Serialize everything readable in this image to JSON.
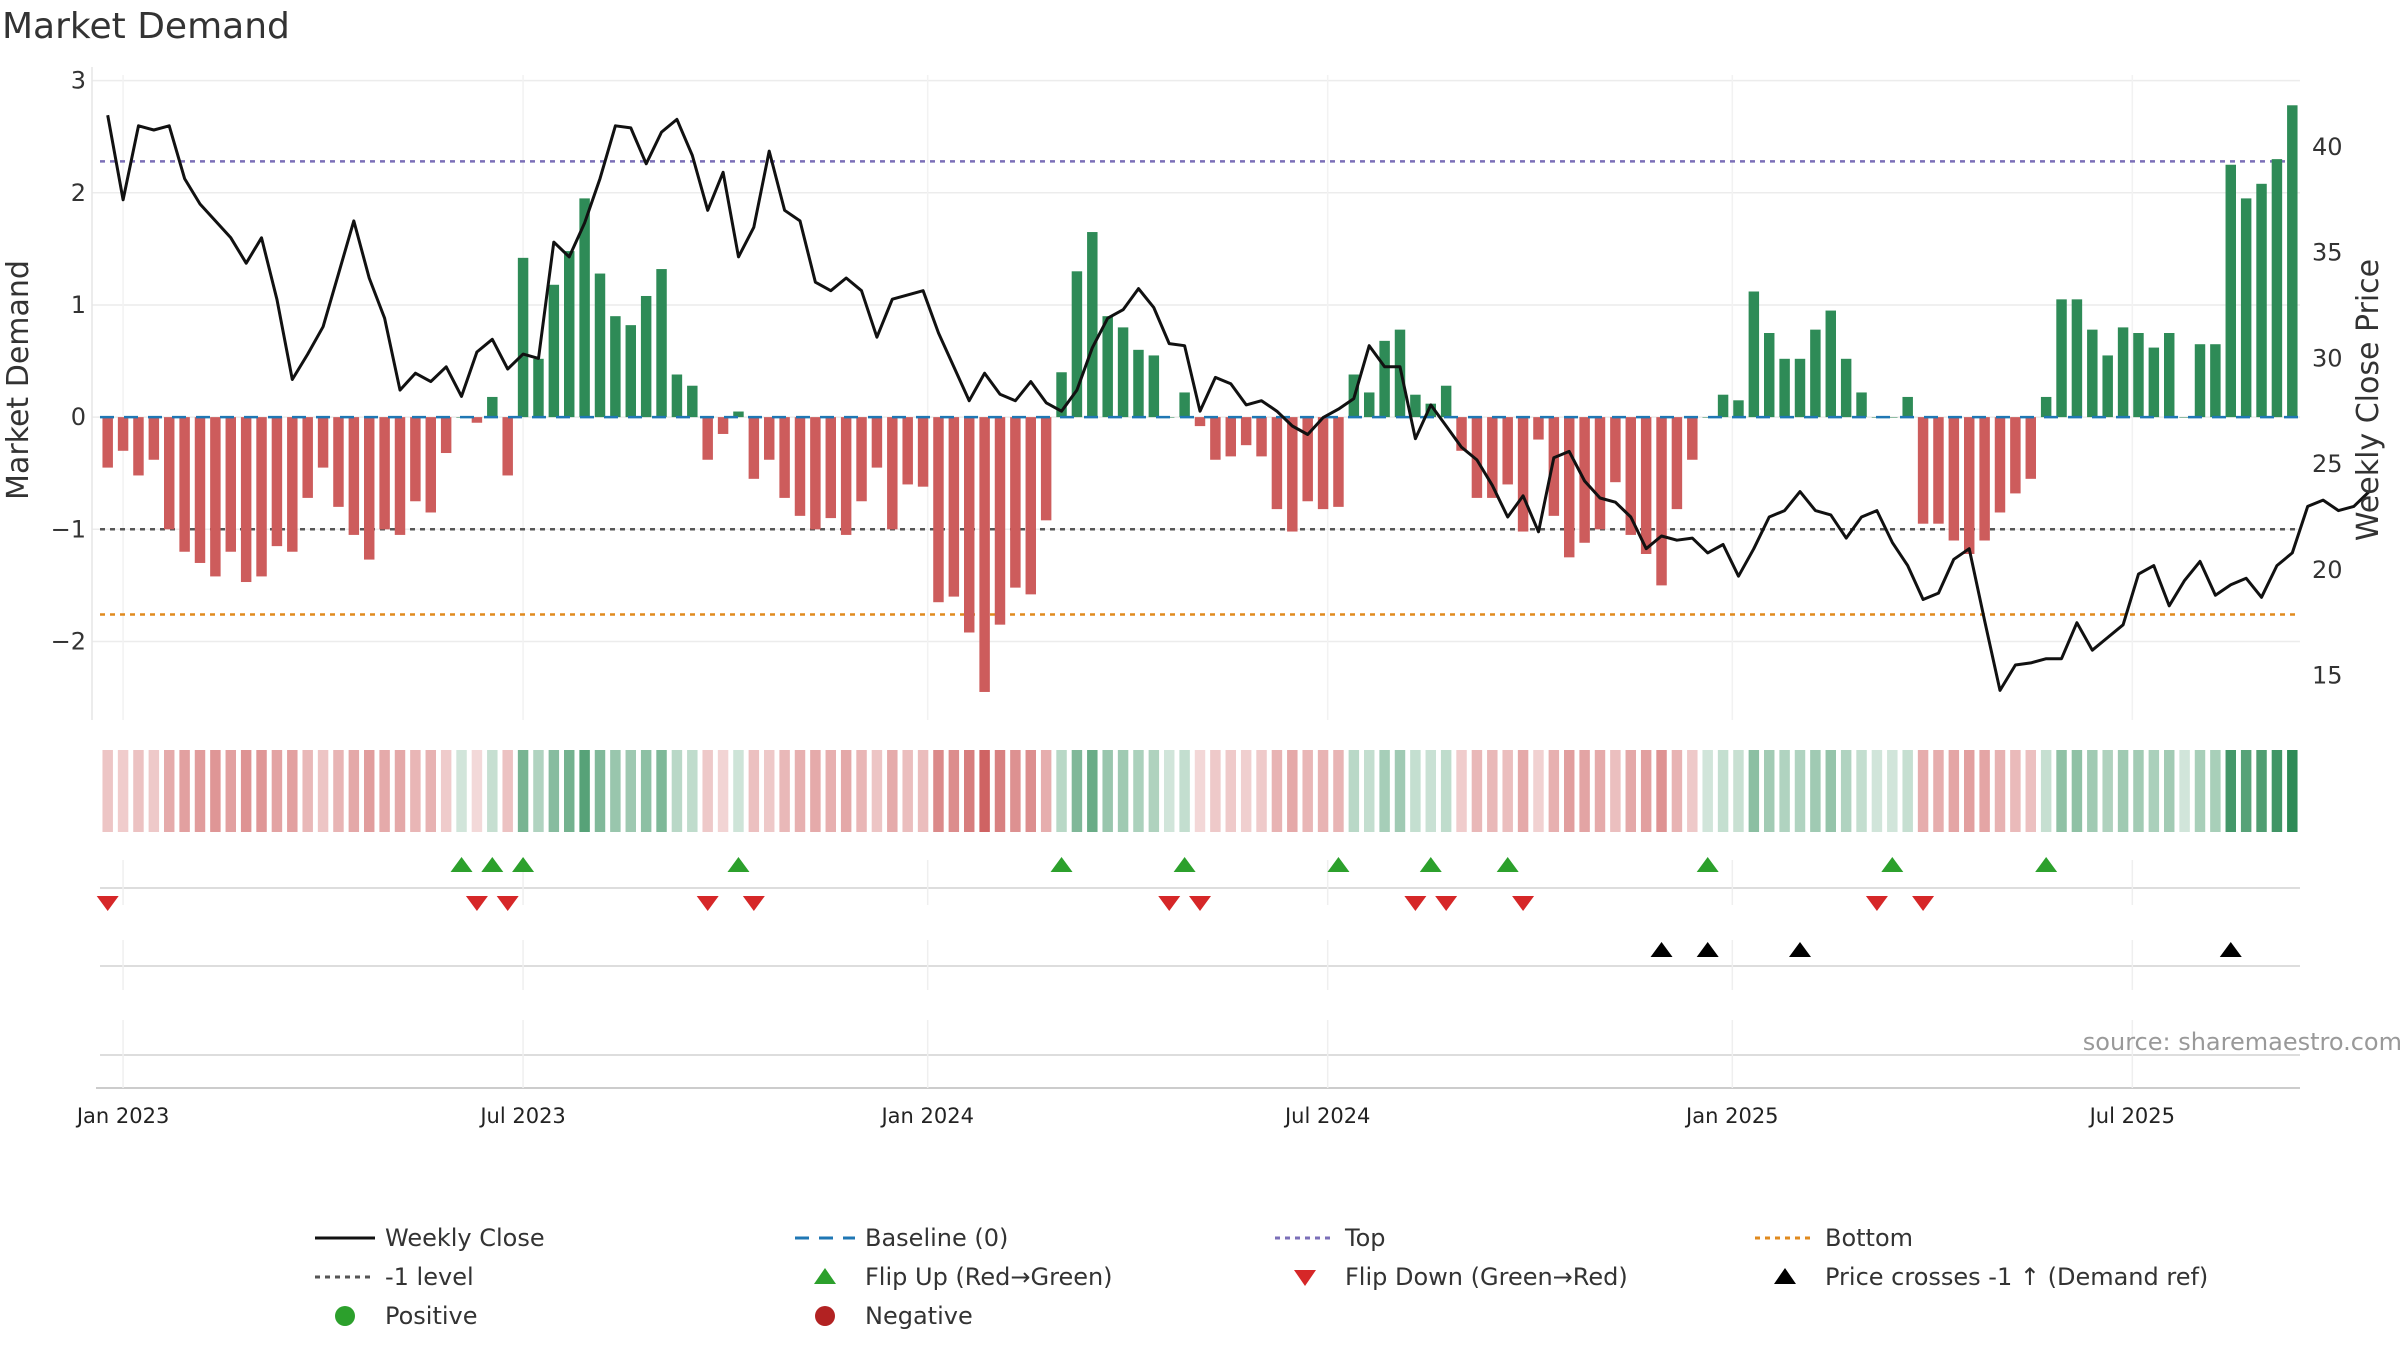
{
  "colors": {
    "positive": "#2e8b57",
    "negative": "#cd5c5c",
    "price": "#111111",
    "baseline": "#1f77b4",
    "top": "#7b6fb8",
    "bottom": "#e08a1e",
    "level": "#555555",
    "flip_up": "#2ca02c",
    "flip_down": "#d62728",
    "cross": "#000000",
    "positive_dot": "#2ca02c",
    "negative_dot": "#b22222"
  },
  "chart_data": {
    "type": "bar",
    "title": "Market Demand",
    "ylabel": "Market Demand",
    "y2label": "Weekly Close Price",
    "source": "source: sharemaestro.com",
    "ylim": [
      -2.7,
      3.05
    ],
    "y2lim": [
      12.9,
      43.4
    ],
    "yticks": [
      {
        "v": 3,
        "label": "3"
      },
      {
        "v": 2,
        "label": "2"
      },
      {
        "v": 1,
        "label": "1"
      },
      {
        "v": 0,
        "label": "0"
      },
      {
        "v": -1,
        "label": "−1"
      },
      {
        "v": -2,
        "label": "−2"
      }
    ],
    "y2ticks": [
      {
        "v": 40,
        "label": "40"
      },
      {
        "v": 35,
        "label": "35"
      },
      {
        "v": 30,
        "label": "30"
      },
      {
        "v": 25,
        "label": "25"
      },
      {
        "v": 20,
        "label": "20"
      },
      {
        "v": 15,
        "label": "15"
      }
    ],
    "xticks": [
      {
        "i": 1,
        "label": "Jan 2023"
      },
      {
        "i": 27,
        "label": "Jul 2023"
      },
      {
        "i": 53.3,
        "label": "Jan 2024"
      },
      {
        "i": 79.3,
        "label": "Jul 2024"
      },
      {
        "i": 105.6,
        "label": "Jan 2025"
      },
      {
        "i": 131.6,
        "label": "Jul 2025"
      }
    ],
    "top_level": 2.28,
    "bottom_level": -1.76,
    "minus_one_level": -1.0,
    "demand": [
      -0.45,
      -0.3,
      -0.52,
      -0.38,
      -1.0,
      -1.2,
      -1.3,
      -1.42,
      -1.2,
      -1.47,
      -1.42,
      -1.15,
      -1.2,
      -0.72,
      -0.45,
      -0.8,
      -1.05,
      -1.27,
      -1.0,
      -1.05,
      -0.75,
      -0.85,
      -0.32,
      0.0,
      -0.05,
      0.18,
      -0.52,
      1.42,
      0.52,
      1.18,
      1.48,
      1.95,
      1.28,
      0.9,
      0.82,
      1.08,
      1.32,
      0.38,
      0.28,
      -0.38,
      -0.15,
      0.05,
      -0.55,
      -0.38,
      -0.72,
      -0.88,
      -1.0,
      -0.9,
      -1.05,
      -0.75,
      -0.45,
      -1.0,
      -0.6,
      -0.62,
      -1.65,
      -1.6,
      -1.92,
      -2.45,
      -1.85,
      -1.52,
      -1.58,
      -0.92,
      0.4,
      1.3,
      1.65,
      0.9,
      0.8,
      0.6,
      0.55,
      0.0,
      0.22,
      -0.08,
      -0.38,
      -0.35,
      -0.25,
      -0.35,
      -0.82,
      -1.02,
      -0.75,
      -0.82,
      -0.8,
      0.38,
      0.22,
      0.68,
      0.78,
      0.2,
      0.12,
      0.28,
      -0.3,
      -0.72,
      -0.72,
      -0.6,
      -1.02,
      -0.2,
      -0.88,
      -1.25,
      -1.12,
      -1.0,
      -0.58,
      -1.05,
      -1.22,
      -1.5,
      -0.82,
      -0.38,
      0.0,
      0.2,
      0.15,
      1.12,
      0.75,
      0.52,
      0.52,
      0.78,
      0.95,
      0.52,
      0.22,
      0.0,
      0.0,
      0.18,
      -0.95,
      -0.95,
      -1.1,
      -1.22,
      -1.1,
      -0.85,
      -0.68,
      -0.55,
      0.18,
      1.05,
      1.05,
      0.78,
      0.55,
      0.8,
      0.75,
      0.62,
      0.75,
      0.0,
      0.65,
      0.65,
      2.25,
      1.95,
      2.08,
      2.3,
      2.78
    ],
    "price": [
      41.5,
      37.5,
      41.0,
      40.8,
      41.0,
      38.5,
      37.3,
      36.5,
      35.7,
      34.5,
      35.7,
      32.8,
      29.0,
      30.2,
      31.5,
      34.0,
      36.5,
      33.8,
      31.9,
      28.5,
      29.3,
      28.9,
      29.6,
      28.2,
      30.3,
      30.9,
      29.5,
      30.2,
      30.0,
      35.5,
      34.8,
      36.4,
      38.5,
      41.0,
      40.9,
      39.2,
      40.7,
      41.3,
      39.6,
      37.0,
      38.8,
      34.8,
      36.2,
      39.8,
      37.0,
      36.5,
      33.6,
      33.2,
      33.8,
      33.2,
      31.0,
      32.8,
      33.0,
      33.2,
      31.2,
      29.6,
      28.0,
      29.3,
      28.3,
      28.0,
      28.9,
      27.9,
      27.5,
      28.5,
      30.5,
      31.9,
      32.3,
      33.3,
      32.4,
      30.7,
      30.6,
      27.5,
      29.1,
      28.8,
      27.8,
      28.0,
      27.5,
      26.8,
      26.4,
      27.2,
      27.6,
      28.1,
      30.6,
      29.6,
      29.6,
      26.2,
      27.8,
      26.8,
      25.8,
      25.2,
      24.0,
      22.5,
      23.5,
      21.8,
      25.3,
      25.6,
      24.2,
      23.4,
      23.2,
      22.5,
      21.0,
      21.6,
      21.4,
      21.5,
      20.8,
      21.2,
      19.7,
      21.0,
      22.5,
      22.8,
      23.7,
      22.8,
      22.6,
      21.5,
      22.5,
      22.8,
      21.3,
      20.2,
      18.6,
      18.9,
      20.5,
      21.0,
      17.6,
      14.3,
      15.5,
      15.6,
      15.8,
      15.8,
      17.5,
      16.2,
      16.8,
      17.4,
      19.8,
      20.2,
      18.3,
      19.5,
      20.4,
      18.8,
      19.3,
      19.6,
      18.7,
      20.2,
      20.8,
      23.0,
      23.3,
      22.8,
      23.0,
      23.7
    ],
    "flip_up": [
      23,
      25,
      27,
      41,
      62,
      70,
      80,
      86,
      91,
      104,
      116,
      126
    ],
    "flip_down": [
      0,
      24,
      26,
      39,
      42,
      69,
      71,
      85,
      87,
      92,
      115,
      118
    ],
    "price_cross_up": [
      101,
      104,
      110,
      138
    ],
    "legend": [
      {
        "key": "price",
        "label": "Weekly Close"
      },
      {
        "key": "baseline",
        "label": "Baseline (0)"
      },
      {
        "key": "top",
        "label": "Top"
      },
      {
        "key": "bottom",
        "label": "Bottom"
      },
      {
        "key": "minus_one",
        "label": "-1 level"
      },
      {
        "key": "flip_up",
        "label": "Flip Up (Red→Green)"
      },
      {
        "key": "flip_down",
        "label": "Flip Down (Green→Red)"
      },
      {
        "key": "cross",
        "label": "Price crosses -1 ↑ (Demand ref)"
      },
      {
        "key": "positive",
        "label": "Positive"
      },
      {
        "key": "negative",
        "label": "Negative"
      }
    ]
  }
}
